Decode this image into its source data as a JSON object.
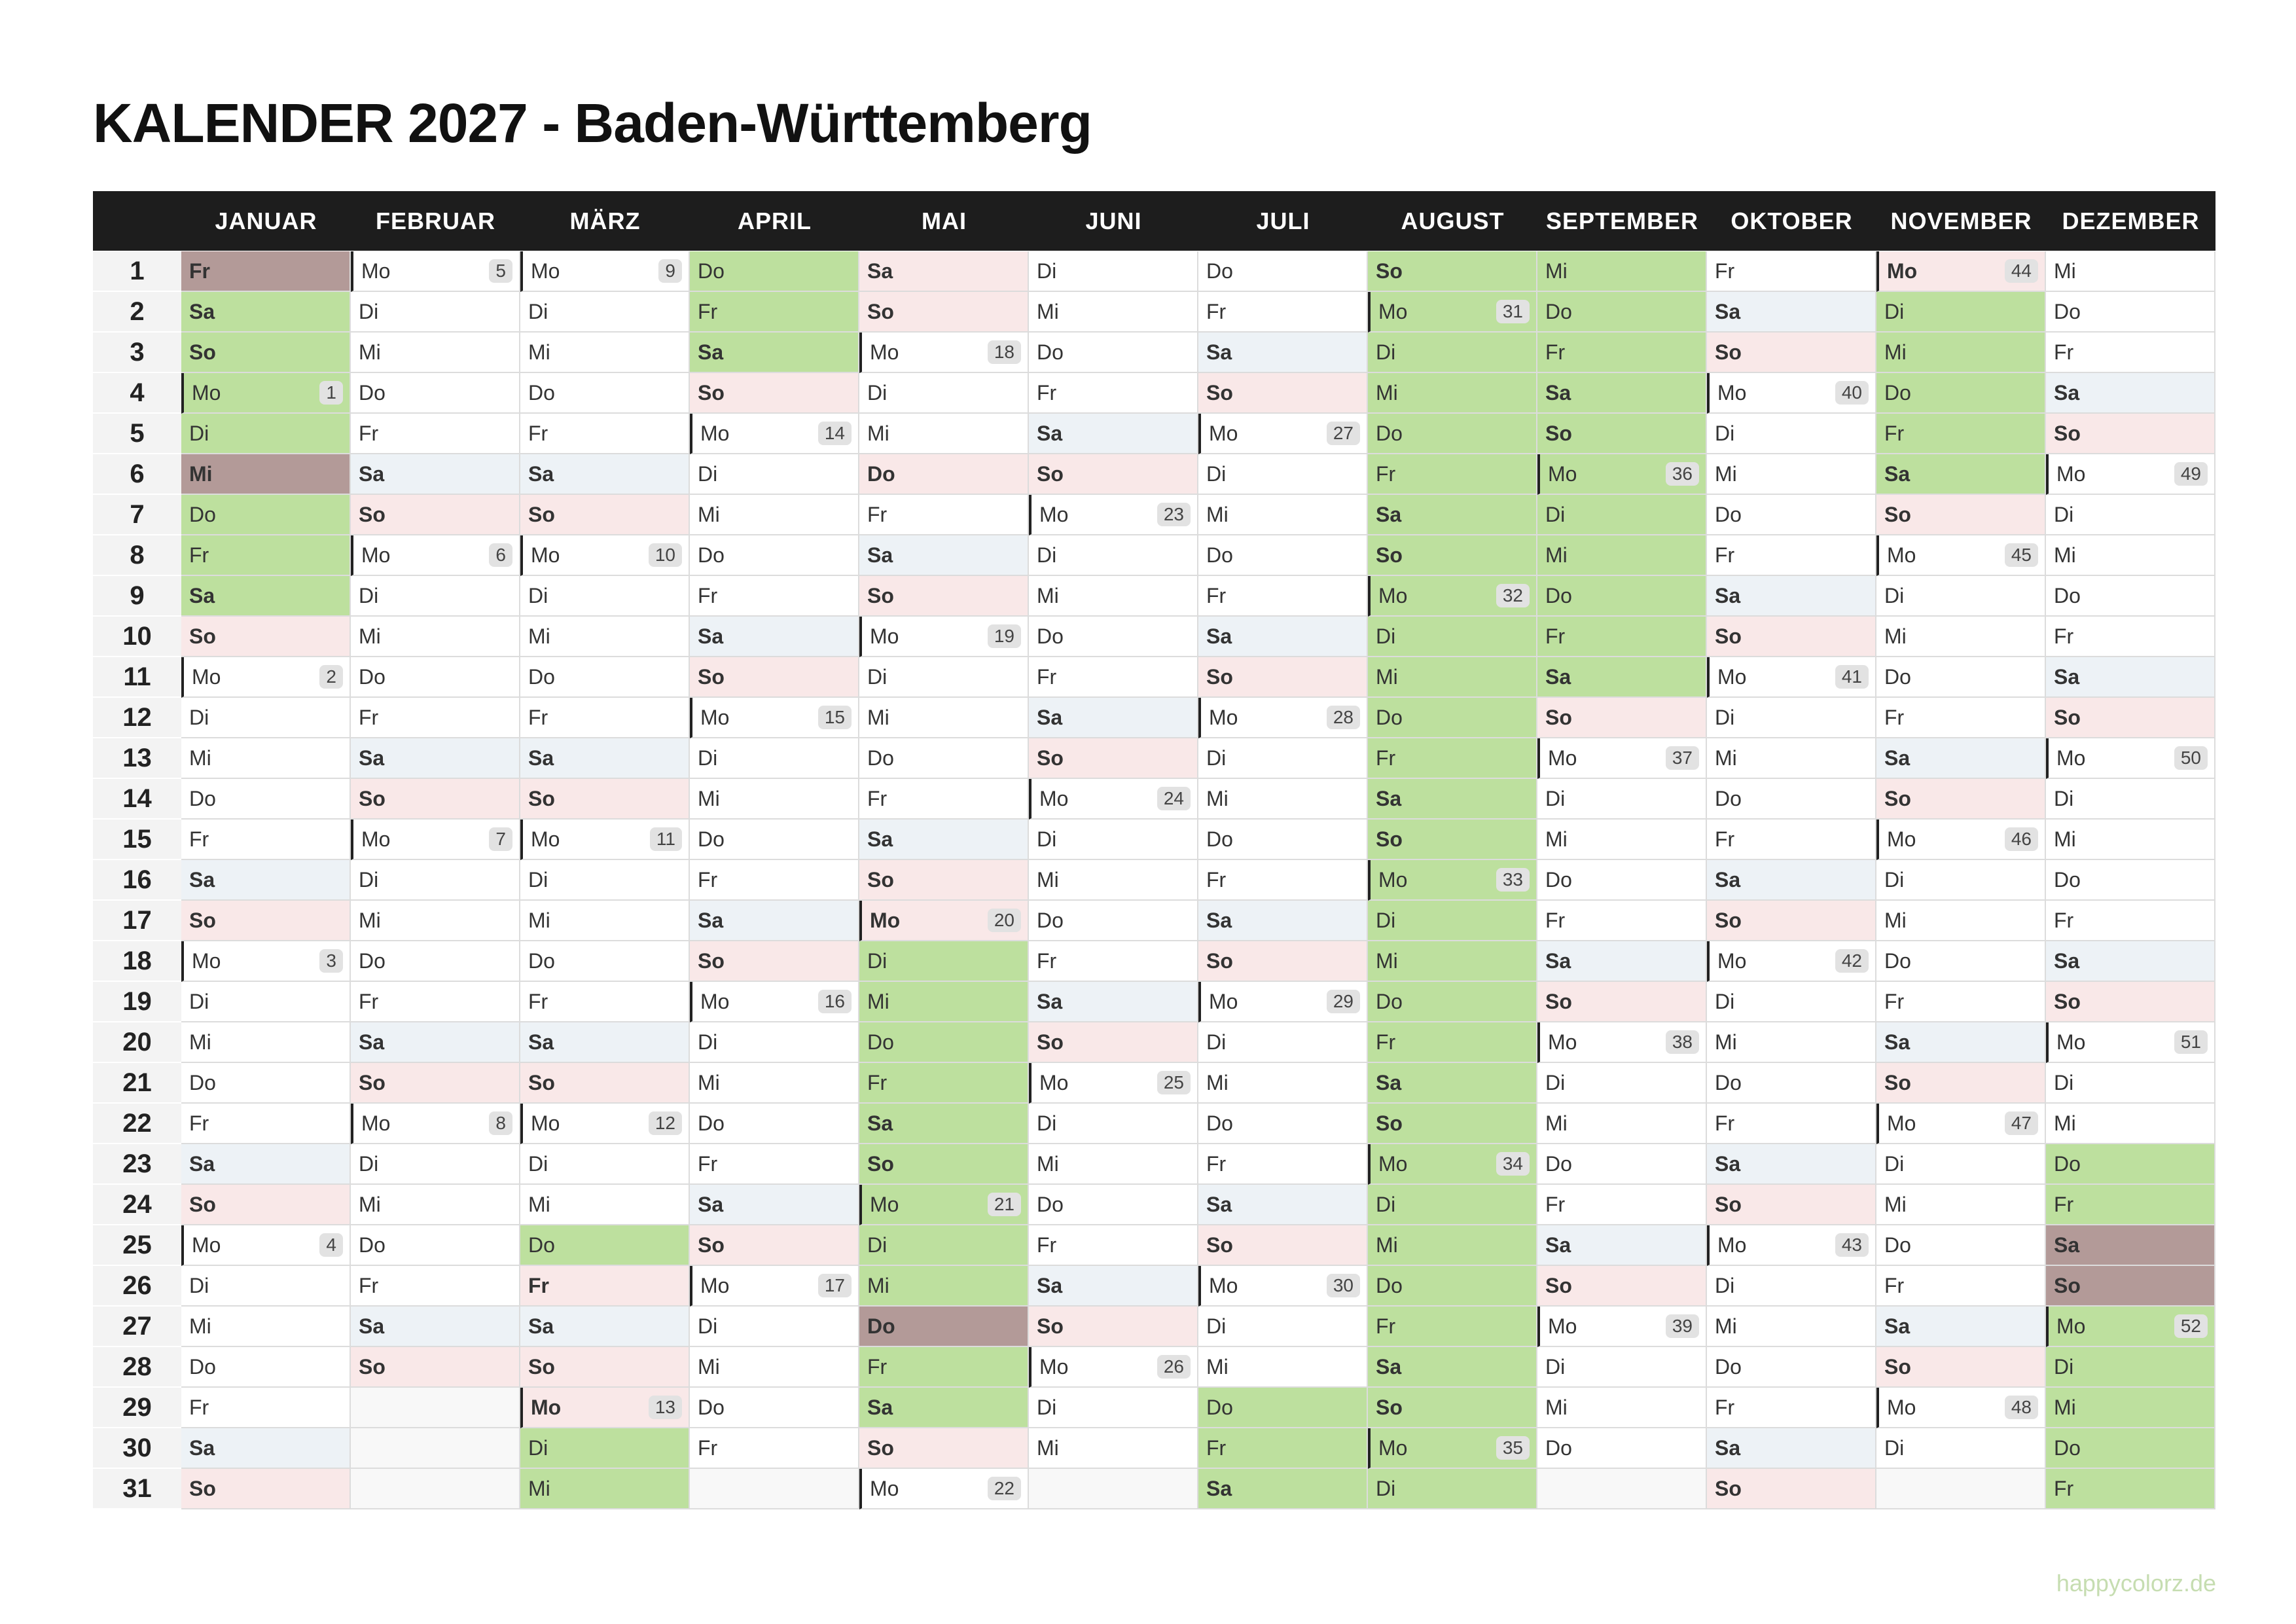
{
  "title": "KALENDER 2027 - Baden-Württemberg",
  "footer": "happycolorz.de",
  "row_numbers": [
    1,
    2,
    3,
    4,
    5,
    6,
    7,
    8,
    9,
    10,
    11,
    12,
    13,
    14,
    15,
    16,
    17,
    18,
    19,
    20,
    21,
    22,
    23,
    24,
    25,
    26,
    27,
    28,
    29,
    30,
    31
  ],
  "week_day": "Mo",
  "colors": {
    "header": "#1d1d1d",
    "vacation": "#bde09e",
    "vacation_holiday": "#b39a98",
    "holiday": "#f9e8e8",
    "weekend": {
      "Sa": "#edf2f6",
      "So": "#f9e8e8"
    }
  },
  "months": [
    {
      "name": "JANUAR",
      "days": [
        "Fr",
        "Sa",
        "So",
        "Mo",
        "Di",
        "Mi",
        "Do",
        "Fr",
        "Sa",
        "So",
        "Mo",
        "Di",
        "Mi",
        "Do",
        "Fr",
        "Sa",
        "So",
        "Mo",
        "Di",
        "Mi",
        "Do",
        "Fr",
        "Sa",
        "So",
        "Mo",
        "Di",
        "Mi",
        "Do",
        "Fr",
        "Sa",
        "So"
      ],
      "weeks": [
        1,
        2,
        3,
        4
      ],
      "vacation": [
        [
          2,
          9
        ]
      ],
      "holidays": [],
      "vacation_holidays": [
        1,
        6
      ]
    },
    {
      "name": "FEBRUAR",
      "days": [
        "Mo",
        "Di",
        "Mi",
        "Do",
        "Fr",
        "Sa",
        "So",
        "Mo",
        "Di",
        "Mi",
        "Do",
        "Fr",
        "Sa",
        "So",
        "Mo",
        "Di",
        "Mi",
        "Do",
        "Fr",
        "Sa",
        "So",
        "Mo",
        "Di",
        "Mi",
        "Do",
        "Fr",
        "Sa",
        "So"
      ],
      "weeks": [
        5,
        6,
        7,
        8
      ],
      "vacation": [],
      "holidays": [],
      "vacation_holidays": []
    },
    {
      "name": "MÄRZ",
      "days": [
        "Mo",
        "Di",
        "Mi",
        "Do",
        "Fr",
        "Sa",
        "So",
        "Mo",
        "Di",
        "Mi",
        "Do",
        "Fr",
        "Sa",
        "So",
        "Mo",
        "Di",
        "Mi",
        "Do",
        "Fr",
        "Sa",
        "So",
        "Mo",
        "Di",
        "Mi",
        "Do",
        "Fr",
        "Sa",
        "So",
        "Mo",
        "Di",
        "Mi"
      ],
      "weeks": [
        9,
        10,
        11,
        12,
        13
      ],
      "vacation": [
        [
          25,
          25
        ],
        [
          30,
          31
        ]
      ],
      "holidays": [
        26,
        29
      ],
      "vacation_holidays": []
    },
    {
      "name": "APRIL",
      "days": [
        "Do",
        "Fr",
        "Sa",
        "So",
        "Mo",
        "Di",
        "Mi",
        "Do",
        "Fr",
        "Sa",
        "So",
        "Mo",
        "Di",
        "Mi",
        "Do",
        "Fr",
        "Sa",
        "So",
        "Mo",
        "Di",
        "Mi",
        "Do",
        "Fr",
        "Sa",
        "So",
        "Mo",
        "Di",
        "Mi",
        "Do",
        "Fr"
      ],
      "weeks": [
        14,
        15,
        16,
        17
      ],
      "vacation": [
        [
          1,
          3
        ]
      ],
      "holidays": [],
      "vacation_holidays": []
    },
    {
      "name": "MAI",
      "days": [
        "Sa",
        "So",
        "Mo",
        "Di",
        "Mi",
        "Do",
        "Fr",
        "Sa",
        "So",
        "Mo",
        "Di",
        "Mi",
        "Do",
        "Fr",
        "Sa",
        "So",
        "Mo",
        "Di",
        "Mi",
        "Do",
        "Fr",
        "Sa",
        "So",
        "Mo",
        "Di",
        "Mi",
        "Do",
        "Fr",
        "Sa",
        "So",
        "Mo"
      ],
      "weeks": [
        18,
        19,
        20,
        21,
        22
      ],
      "vacation": [
        [
          18,
          26
        ],
        [
          28,
          29
        ]
      ],
      "holidays": [
        1,
        6,
        17
      ],
      "vacation_holidays": [
        27
      ]
    },
    {
      "name": "JUNI",
      "days": [
        "Di",
        "Mi",
        "Do",
        "Fr",
        "Sa",
        "So",
        "Mo",
        "Di",
        "Mi",
        "Do",
        "Fr",
        "Sa",
        "So",
        "Mo",
        "Di",
        "Mi",
        "Do",
        "Fr",
        "Sa",
        "So",
        "Mo",
        "Di",
        "Mi",
        "Do",
        "Fr",
        "Sa",
        "So",
        "Mo",
        "Di",
        "Mi"
      ],
      "weeks": [
        23,
        24,
        25,
        26
      ],
      "vacation": [],
      "holidays": [],
      "vacation_holidays": []
    },
    {
      "name": "JULI",
      "days": [
        "Do",
        "Fr",
        "Sa",
        "So",
        "Mo",
        "Di",
        "Mi",
        "Do",
        "Fr",
        "Sa",
        "So",
        "Mo",
        "Di",
        "Mi",
        "Do",
        "Fr",
        "Sa",
        "So",
        "Mo",
        "Di",
        "Mi",
        "Do",
        "Fr",
        "Sa",
        "So",
        "Mo",
        "Di",
        "Mi",
        "Do",
        "Fr",
        "Sa"
      ],
      "weeks": [
        27,
        28,
        29,
        30
      ],
      "vacation": [
        [
          29,
          31
        ]
      ],
      "holidays": [],
      "vacation_holidays": []
    },
    {
      "name": "AUGUST",
      "days": [
        "So",
        "Mo",
        "Di",
        "Mi",
        "Do",
        "Fr",
        "Sa",
        "So",
        "Mo",
        "Di",
        "Mi",
        "Do",
        "Fr",
        "Sa",
        "So",
        "Mo",
        "Di",
        "Mi",
        "Do",
        "Fr",
        "Sa",
        "So",
        "Mo",
        "Di",
        "Mi",
        "Do",
        "Fr",
        "Sa",
        "So",
        "Mo",
        "Di"
      ],
      "weeks": [
        31,
        32,
        33,
        34,
        35
      ],
      "vacation": [
        [
          1,
          31
        ]
      ],
      "holidays": [],
      "vacation_holidays": []
    },
    {
      "name": "SEPTEMBER",
      "days": [
        "Mi",
        "Do",
        "Fr",
        "Sa",
        "So",
        "Mo",
        "Di",
        "Mi",
        "Do",
        "Fr",
        "Sa",
        "So",
        "Mo",
        "Di",
        "Mi",
        "Do",
        "Fr",
        "Sa",
        "So",
        "Mo",
        "Di",
        "Mi",
        "Do",
        "Fr",
        "Sa",
        "So",
        "Mo",
        "Di",
        "Mi",
        "Do"
      ],
      "weeks": [
        36,
        37,
        38,
        39
      ],
      "vacation": [
        [
          1,
          11
        ]
      ],
      "holidays": [],
      "vacation_holidays": []
    },
    {
      "name": "OKTOBER",
      "days": [
        "Fr",
        "Sa",
        "So",
        "Mo",
        "Di",
        "Mi",
        "Do",
        "Fr",
        "Sa",
        "So",
        "Mo",
        "Di",
        "Mi",
        "Do",
        "Fr",
        "Sa",
        "So",
        "Mo",
        "Di",
        "Mi",
        "Do",
        "Fr",
        "Sa",
        "So",
        "Mo",
        "Di",
        "Mi",
        "Do",
        "Fr",
        "Sa",
        "So"
      ],
      "weeks": [
        40,
        41,
        42,
        43
      ],
      "vacation": [],
      "holidays": [
        3
      ],
      "vacation_holidays": []
    },
    {
      "name": "NOVEMBER",
      "days": [
        "Mo",
        "Di",
        "Mi",
        "Do",
        "Fr",
        "Sa",
        "So",
        "Mo",
        "Di",
        "Mi",
        "Do",
        "Fr",
        "Sa",
        "So",
        "Mo",
        "Di",
        "Mi",
        "Do",
        "Fr",
        "Sa",
        "So",
        "Mo",
        "Di",
        "Mi",
        "Do",
        "Fr",
        "Sa",
        "So",
        "Mo",
        "Di"
      ],
      "weeks": [
        44,
        45,
        46,
        47,
        48
      ],
      "vacation": [
        [
          2,
          6
        ]
      ],
      "holidays": [
        1
      ],
      "vacation_holidays": []
    },
    {
      "name": "DEZEMBER",
      "days": [
        "Mi",
        "Do",
        "Fr",
        "Sa",
        "So",
        "Mo",
        "Di",
        "Mi",
        "Do",
        "Fr",
        "Sa",
        "So",
        "Mo",
        "Di",
        "Mi",
        "Do",
        "Fr",
        "Sa",
        "So",
        "Mo",
        "Di",
        "Mi",
        "Do",
        "Fr",
        "Sa",
        "So",
        "Mo",
        "Di",
        "Mi",
        "Do",
        "Fr"
      ],
      "weeks": [
        49,
        50,
        51,
        52
      ],
      "vacation": [
        [
          23,
          24
        ],
        [
          27,
          31
        ]
      ],
      "holidays": [],
      "vacation_holidays": [
        25,
        26
      ]
    }
  ]
}
